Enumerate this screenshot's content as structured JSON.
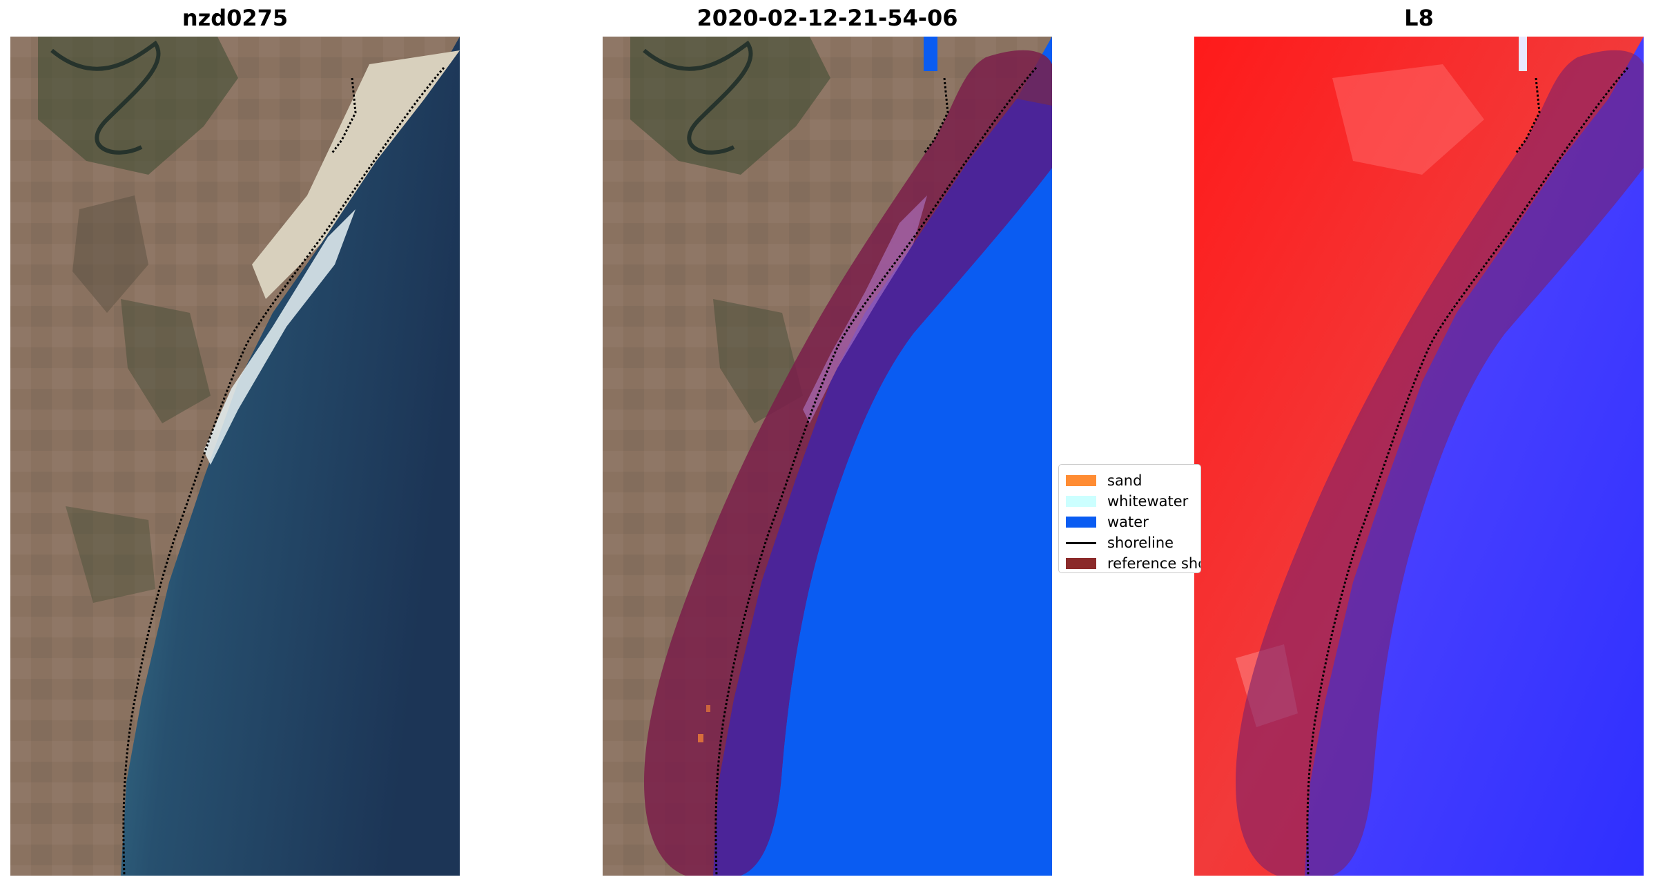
{
  "panels": [
    {
      "title": "nzd0275"
    },
    {
      "title": "2020-02-12-21-54-06"
    },
    {
      "title": "L8"
    }
  ],
  "legend": {
    "items": [
      {
        "label": "sand",
        "color": "#ff8c33",
        "kind": "patch"
      },
      {
        "label": "whitewater",
        "color": "#ccffff",
        "kind": "patch"
      },
      {
        "label": "water",
        "color": "#0a5cf2",
        "kind": "patch"
      },
      {
        "label": "shoreline",
        "color": "#000000",
        "kind": "line"
      },
      {
        "label": "reference shoreline buffer",
        "color": "#8b2a2a",
        "kind": "patch"
      }
    ]
  },
  "colors": {
    "land": "#8f7563",
    "ocean_deep": "#1e3a5c",
    "ocean_shallow": "#3f7e94",
    "beach": "#d9d2c0",
    "surf": "#e8f3f4",
    "water_class": "#0a5cf2",
    "buffer": "#7a1f4a",
    "buffer_over_water": "#4b2498",
    "ndwi_land": "#ff2a2a",
    "ndwi_water": "#3b3bff"
  }
}
